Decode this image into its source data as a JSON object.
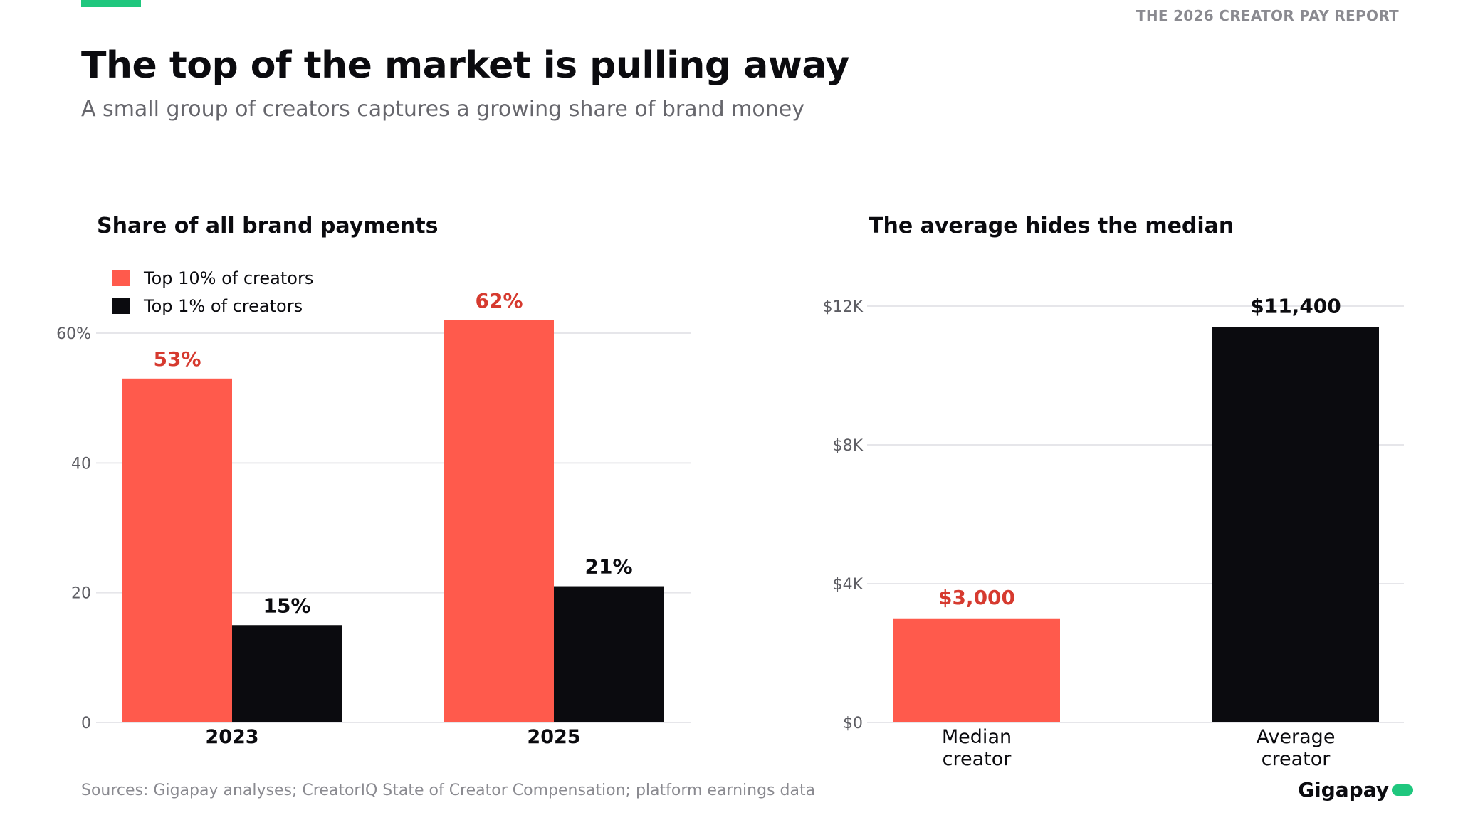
{
  "header": {
    "tag": "THE 2026 CREATOR PAY REPORT",
    "title": "The top of the market is pulling away",
    "subtitle": "A small group of creators captures a growing share of brand money"
  },
  "colors": {
    "accent": "#1fc77e",
    "coral": "#ff5a4c",
    "coral_text": "#d63a2f",
    "black": "#0b0b0f",
    "grid": "#e6e6ea"
  },
  "chart_data": [
    {
      "type": "bar",
      "title": "Share of all brand payments",
      "categories": [
        "2023",
        "2025"
      ],
      "series": [
        {
          "name": "Top 10% of creators",
          "values": [
            53,
            62
          ],
          "labels": [
            "53%",
            "62%"
          ],
          "color": "#ff5a4c",
          "label_color": "#d63a2f"
        },
        {
          "name": "Top 1% of creators",
          "values": [
            15,
            21
          ],
          "labels": [
            "15%",
            "21%"
          ],
          "color": "#0b0b0f",
          "label_color": "#0b0b0f"
        }
      ],
      "yticks": [
        0,
        20,
        40,
        60
      ],
      "ytick_labels": [
        "0",
        "20",
        "40",
        "60%"
      ],
      "ylim": [
        0,
        60
      ],
      "legend": "top-left",
      "grid": true
    },
    {
      "type": "bar",
      "title": "The average hides the median",
      "categories": [
        [
          "Median",
          "creator"
        ],
        [
          "Average",
          "creator"
        ]
      ],
      "values": [
        3000,
        11400
      ],
      "labels": [
        "$3,000",
        "$11,400"
      ],
      "colors": [
        "#ff5a4c",
        "#0b0b0f"
      ],
      "label_colors": [
        "#d63a2f",
        "#0b0b0f"
      ],
      "yticks": [
        0,
        4000,
        8000,
        12000
      ],
      "ytick_labels": [
        "$0",
        "$4K",
        "$8K",
        "$12K"
      ],
      "ylim": [
        0,
        12000
      ],
      "grid": true
    }
  ],
  "footer": {
    "sources": "Sources: Gigapay analyses; CreatorIQ State of Creator Compensation; platform earnings data",
    "brand": "Gigapay"
  }
}
